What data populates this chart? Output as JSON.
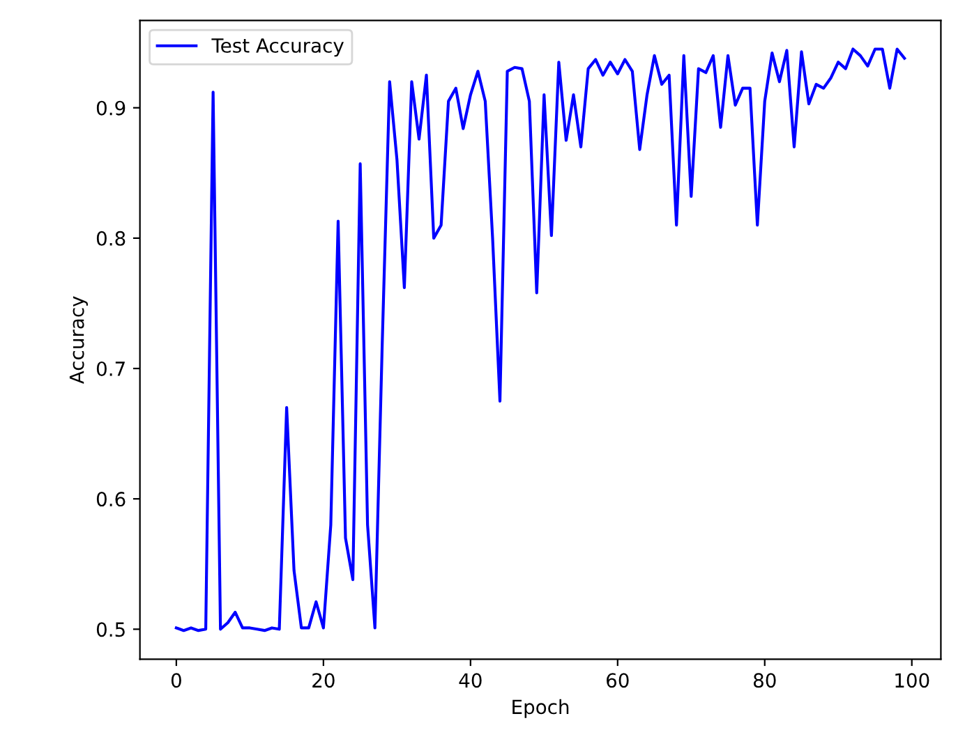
{
  "chart_data": {
    "type": "line",
    "xlabel": "Epoch",
    "ylabel": "Accuracy",
    "x": [
      0,
      1,
      2,
      3,
      4,
      5,
      6,
      7,
      8,
      9,
      10,
      11,
      12,
      13,
      14,
      15,
      16,
      17,
      18,
      19,
      20,
      21,
      22,
      23,
      24,
      25,
      26,
      27,
      28,
      29,
      30,
      31,
      32,
      33,
      34,
      35,
      36,
      37,
      38,
      39,
      40,
      41,
      42,
      43,
      44,
      45,
      46,
      47,
      48,
      49,
      50,
      51,
      52,
      53,
      54,
      55,
      56,
      57,
      58,
      59,
      60,
      61,
      62,
      63,
      64,
      65,
      66,
      67,
      68,
      69,
      70,
      71,
      72,
      73,
      74,
      75,
      76,
      77,
      78,
      79,
      80,
      81,
      82,
      83,
      84,
      85,
      86,
      87,
      88,
      89,
      90,
      91,
      92,
      93,
      94,
      95,
      96,
      97,
      98,
      99
    ],
    "series": [
      {
        "name": "Test Accuracy",
        "color": "#0000ff",
        "values": [
          0.501,
          0.499,
          0.501,
          0.499,
          0.5,
          0.912,
          0.5,
          0.505,
          0.513,
          0.501,
          0.501,
          0.5,
          0.499,
          0.501,
          0.5,
          0.67,
          0.545,
          0.501,
          0.501,
          0.521,
          0.501,
          0.58,
          0.813,
          0.57,
          0.538,
          0.857,
          0.58,
          0.501,
          0.72,
          0.92,
          0.86,
          0.762,
          0.92,
          0.876,
          0.925,
          0.8,
          0.81,
          0.905,
          0.915,
          0.884,
          0.91,
          0.928,
          0.905,
          0.8,
          0.675,
          0.928,
          0.931,
          0.93,
          0.905,
          0.758,
          0.91,
          0.802,
          0.935,
          0.875,
          0.91,
          0.87,
          0.93,
          0.937,
          0.925,
          0.935,
          0.926,
          0.937,
          0.928,
          0.868,
          0.91,
          0.94,
          0.918,
          0.925,
          0.81,
          0.94,
          0.832,
          0.93,
          0.927,
          0.94,
          0.885,
          0.94,
          0.902,
          0.915,
          0.915,
          0.81,
          0.905,
          0.942,
          0.92,
          0.944,
          0.87,
          0.943,
          0.903,
          0.918,
          0.915,
          0.923,
          0.935,
          0.93,
          0.945,
          0.94,
          0.932,
          0.945,
          0.945,
          0.915,
          0.945,
          0.938
        ]
      }
    ],
    "xlim": [
      -4.95,
      103.95
    ],
    "ylim": [
      0.477,
      0.967
    ],
    "xticks": [
      0,
      20,
      40,
      60,
      80,
      100
    ],
    "yticks": [
      0.5,
      0.6,
      0.7,
      0.8,
      0.9
    ],
    "legend": "top left",
    "grid": false
  }
}
